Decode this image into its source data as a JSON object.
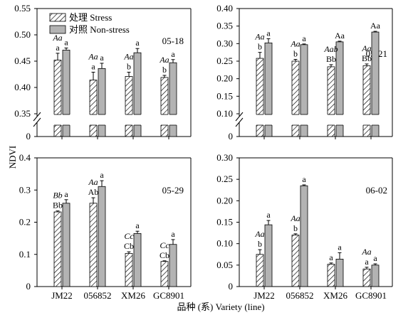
{
  "figure": {
    "ylabel": "NDVI",
    "xlabel": "品种 (系) Variety (line)"
  },
  "colors": {
    "stress_fill": "#ffffff",
    "nonstress_fill": "#b3b3b3",
    "stroke": "#000000"
  },
  "legend": [
    {
      "label": "处理 Stress",
      "pattern": "hatched"
    },
    {
      "label": "对照 Non-stress",
      "pattern": "gray"
    }
  ],
  "chart_data": [
    {
      "type": "bar",
      "panel": "05-18",
      "categories": [
        "JM22",
        "056852",
        "XM26",
        "GC8901"
      ],
      "ylim": [
        0.35,
        0.55
      ],
      "yticks": [
        "0.35",
        "0.40",
        "0.45",
        "0.50",
        "0.55"
      ],
      "axis_break": true,
      "show_x_labels": false,
      "series": [
        {
          "name": "处理 Stress",
          "values": [
            0.452,
            0.414,
            0.421,
            0.419
          ],
          "errors": [
            0.013,
            0.015,
            0.008,
            0.004
          ],
          "labels": [
            "a",
            "a",
            "b",
            "b"
          ]
        },
        {
          "name": "对照 Non-stress",
          "values": [
            0.471,
            0.436,
            0.466,
            0.447
          ],
          "errors": [
            0.004,
            0.01,
            0.008,
            0.006
          ],
          "labels": [
            "a",
            "a",
            "a",
            "a"
          ]
        }
      ],
      "group_labels": [
        "Aa",
        "Aa",
        "Aa",
        "Aa"
      ]
    },
    {
      "type": "bar",
      "panel": "05-21",
      "categories": [
        "JM22",
        "056852",
        "XM26",
        "GC8901"
      ],
      "ylim": [
        0.1,
        0.4
      ],
      "yticks": [
        "0.10",
        "0.15",
        "0.20",
        "0.25",
        "0.30",
        "0.35",
        "0.40"
      ],
      "axis_break": true,
      "show_x_labels": false,
      "series": [
        {
          "name": "处理 Stress",
          "values": [
            0.258,
            0.25,
            0.234,
            0.237
          ],
          "errors": [
            0.017,
            0.005,
            0.006,
            0.005
          ],
          "labels": [
            "b",
            "b",
            "Bb",
            "Bb"
          ]
        },
        {
          "name": "对照 Non-stress",
          "values": [
            0.302,
            0.297,
            0.305,
            0.333
          ],
          "errors": [
            0.012,
            0.002,
            0.002,
            0.002
          ],
          "labels": [
            "a",
            "a",
            "Aa",
            "Aa"
          ]
        }
      ],
      "group_labels": [
        "Aa",
        "Aa",
        "Aab",
        "Aa"
      ]
    },
    {
      "type": "bar",
      "panel": "05-29",
      "categories": [
        "JM22",
        "056852",
        "XM26",
        "GC8901"
      ],
      "ylim": [
        0,
        0.4
      ],
      "yticks": [
        "0",
        "0.1",
        "0.2",
        "0.3",
        "0.4"
      ],
      "axis_break": false,
      "show_x_labels": true,
      "series": [
        {
          "name": "处理 Stress",
          "values": [
            0.232,
            0.259,
            0.103,
            0.078
          ],
          "errors": [
            0.003,
            0.017,
            0.005,
            0.002
          ],
          "labels": [
            "Bb",
            "Ab",
            "Cb",
            "Cb"
          ]
        },
        {
          "name": "对照 Non-stress",
          "values": [
            0.259,
            0.311,
            0.165,
            0.131
          ],
          "errors": [
            0.011,
            0.018,
            0.007,
            0.015
          ],
          "labels": [
            "a",
            "a",
            "a",
            "a"
          ]
        }
      ],
      "group_labels": [
        "Bb",
        "Aa",
        "Cc",
        "Cc"
      ]
    },
    {
      "type": "bar",
      "panel": "06-02",
      "categories": [
        "JM22",
        "056852",
        "XM26",
        "GC8901"
      ],
      "ylim": [
        0,
        0.3
      ],
      "yticks": [
        "0",
        "0.05",
        "0.10",
        "0.15",
        "0.20",
        "0.25",
        "0.30"
      ],
      "axis_break": false,
      "show_x_labels": true,
      "series": [
        {
          "name": "处理 Stress",
          "values": [
            0.075,
            0.12,
            0.052,
            0.041
          ],
          "errors": [
            0.011,
            0.003,
            0.003,
            0.004
          ],
          "labels": [
            "b",
            "b",
            "a",
            "a"
          ]
        },
        {
          "name": "对照 Non-stress",
          "values": [
            0.144,
            0.235,
            0.064,
            0.05
          ],
          "errors": [
            0.01,
            0.002,
            0.015,
            0.003
          ],
          "labels": [
            "a",
            "a",
            "a",
            "a"
          ]
        }
      ],
      "group_labels": [
        "Aa",
        "Aa",
        "",
        "Aa"
      ]
    }
  ]
}
